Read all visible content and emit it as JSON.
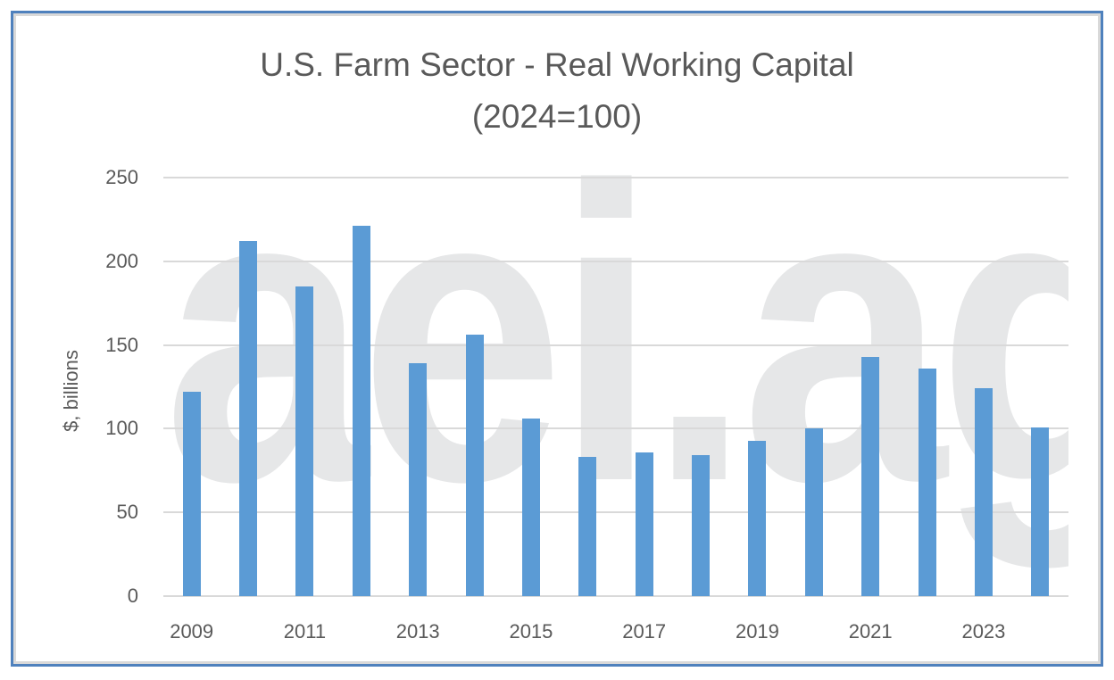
{
  "chart_data": {
    "type": "bar",
    "title": "U.S. Farm Sector - Real Working Capital",
    "subtitle": "(2024=100)",
    "xlabel": "",
    "ylabel": "$, billions",
    "ylim": [
      0,
      250
    ],
    "yticks": [
      0,
      50,
      100,
      150,
      200,
      250
    ],
    "grid": true,
    "legend": "none",
    "watermark": "aei.ag",
    "bar_color": "#5b9bd5",
    "categories": [
      "2009",
      "2010",
      "2011",
      "2012",
      "2013",
      "2014",
      "2015",
      "2016",
      "2017",
      "2018",
      "2019",
      "2020",
      "2021",
      "2022",
      "2023",
      "2024"
    ],
    "xtick_labels": [
      "2009",
      "2011",
      "2013",
      "2015",
      "2017",
      "2019",
      "2021",
      "2023"
    ],
    "values": [
      122,
      212,
      185,
      221,
      139,
      156,
      106,
      83,
      86,
      84,
      93,
      100,
      143,
      136,
      124,
      101
    ]
  },
  "labels": {
    "title_line1": "U.S. Farm Sector - Real Working Capital",
    "title_line2": "(2024=100)",
    "ylabel": "$, billions",
    "watermark": "aei.ag"
  }
}
